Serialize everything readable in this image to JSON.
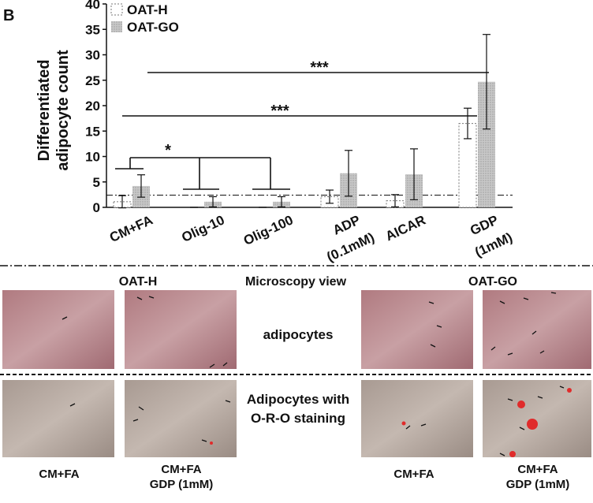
{
  "panel_label": "B",
  "chart_data": {
    "type": "bar",
    "ylabel": [
      "Differentiated",
      "adipocyte count"
    ],
    "categories": [
      [
        "CM+FA"
      ],
      [
        "Olig-10"
      ],
      [
        "Olig-100"
      ],
      [
        "ADP",
        "(0.1mM)"
      ],
      [
        "AICAR"
      ],
      [
        "GDP",
        "(1mM)"
      ]
    ],
    "series": [
      {
        "name": "OAT-H",
        "color": "#ffffff",
        "values": [
          1.1,
          0,
          0,
          2.1,
          1.3,
          16.5
        ],
        "errors": [
          1.2,
          0,
          0,
          1.3,
          1.2,
          3
        ]
      },
      {
        "name": "OAT-GO",
        "color": "#bdbdbd",
        "values": [
          4.2,
          1.1,
          1.1,
          6.7,
          6.5,
          24.7
        ],
        "errors": [
          2.2,
          1,
          1,
          4.5,
          5,
          9.3
        ]
      }
    ],
    "ylim": [
      0,
      40
    ],
    "yticks": [
      0,
      5,
      10,
      15,
      20,
      25,
      30,
      35,
      40
    ],
    "reference_line": 2.4,
    "annotations": [
      "***",
      "***",
      "*"
    ]
  },
  "microscopy": {
    "col_headers": [
      "OAT-H",
      "Microscopy view",
      "OAT-GO"
    ],
    "row_labels": [
      [
        "adipocytes"
      ],
      [
        "Adipocytes with",
        "O-R-O staining"
      ]
    ],
    "col_labels": [
      [
        "CM+FA"
      ],
      [
        "CM+FA",
        "GDP (1mM)"
      ],
      [
        "CM+FA"
      ],
      [
        "CM+FA",
        "GDP (1mM)"
      ]
    ]
  }
}
